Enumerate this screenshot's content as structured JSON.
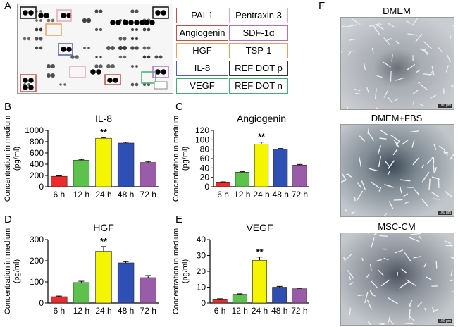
{
  "panel_letters": {
    "a": "A",
    "b": "B",
    "c": "C",
    "d": "D",
    "e": "E",
    "f": "F"
  },
  "legend": [
    {
      "label": "PAI-1",
      "color": "#c0504d"
    },
    {
      "label": "Pentraxin 3",
      "color": "#e7a6ba"
    },
    {
      "label": "Angiogenin",
      "color": "#c0504d"
    },
    {
      "label": "SDF-1α",
      "color": "#b070c0"
    },
    {
      "label": "HGF",
      "color": "#e8a060"
    },
    {
      "label": "TSP-1",
      "color": "#e8a060"
    },
    {
      "label": "IL-8",
      "color": "#5060a8"
    },
    {
      "label": "REF DOT p",
      "color": "#333333"
    },
    {
      "label": "VEGF",
      "color": "#40b070"
    },
    {
      "label": "REF DOT n",
      "color": "#40b070"
    }
  ],
  "microscopy": [
    {
      "label": "DMEM",
      "scale": "100 μm"
    },
    {
      "label": "DMEM+FBS",
      "scale": "100 μm"
    },
    {
      "label": "MSC-CM",
      "scale": "100 μm"
    }
  ],
  "ylabel_line1": "Concentration in medium",
  "ylabel_line2": "(pg/ml)",
  "chart_data": [
    {
      "type": "bar",
      "title": "IL-8",
      "categories": [
        "6 h",
        "12 h",
        "24 h",
        "48 h",
        "72 h"
      ],
      "values": [
        185,
        470,
        860,
        775,
        430
      ],
      "errors": [
        8,
        15,
        12,
        15,
        18
      ],
      "colors": [
        "#ee2a2a",
        "#5cc24c",
        "#f5f500",
        "#2e4fb4",
        "#9a5ba8"
      ],
      "ylim": [
        0,
        1000
      ],
      "yticks": [
        0,
        200,
        400,
        600,
        800,
        1000
      ],
      "annotation": "**",
      "annotation_index": 2,
      "ylabel": "Concentration in medium (pg/ml)"
    },
    {
      "type": "bar",
      "title": "Angiogenin",
      "categories": [
        "6 h",
        "12 h",
        "24 h",
        "48 h",
        "72 h"
      ],
      "values": [
        10,
        31,
        91,
        80,
        46
      ],
      "errors": [
        0.5,
        1,
        4,
        1.5,
        1.5
      ],
      "colors": [
        "#ee2a2a",
        "#5cc24c",
        "#f5f500",
        "#2e4fb4",
        "#9a5ba8"
      ],
      "ylim": [
        0,
        120
      ],
      "yticks": [
        0,
        20,
        40,
        60,
        80,
        100,
        120
      ],
      "annotation": "**",
      "annotation_index": 2,
      "ylabel": "Concentration in medium (pg/ml)"
    },
    {
      "type": "bar",
      "title": "HGF",
      "categories": [
        "6 h",
        "12 h",
        "24 h",
        "48 h",
        "72 h"
      ],
      "values": [
        30,
        97,
        245,
        190,
        120
      ],
      "errors": [
        3,
        6,
        22,
        6,
        10
      ],
      "colors": [
        "#ee2a2a",
        "#5cc24c",
        "#f5f500",
        "#2e4fb4",
        "#9a5ba8"
      ],
      "ylim": [
        0,
        300
      ],
      "yticks": [
        0,
        100,
        200,
        300
      ],
      "annotation": "**",
      "annotation_index": 2,
      "ylabel": "Concentration in medium (pg/ml)"
    },
    {
      "type": "bar",
      "title": "VEGF",
      "categories": [
        "6 h",
        "12 h",
        "24 h",
        "48 h",
        "72 h"
      ],
      "values": [
        2.5,
        5.5,
        27,
        10,
        9
      ],
      "errors": [
        0.2,
        0.3,
        2,
        0.5,
        0.4
      ],
      "colors": [
        "#ee2a2a",
        "#5cc24c",
        "#f5f500",
        "#2e4fb4",
        "#9a5ba8"
      ],
      "ylim": [
        0,
        40
      ],
      "yticks": [
        0,
        10,
        20,
        30,
        40
      ],
      "annotation": "**",
      "annotation_index": 2,
      "ylabel": "Concentration in medium (pg/ml)"
    }
  ]
}
